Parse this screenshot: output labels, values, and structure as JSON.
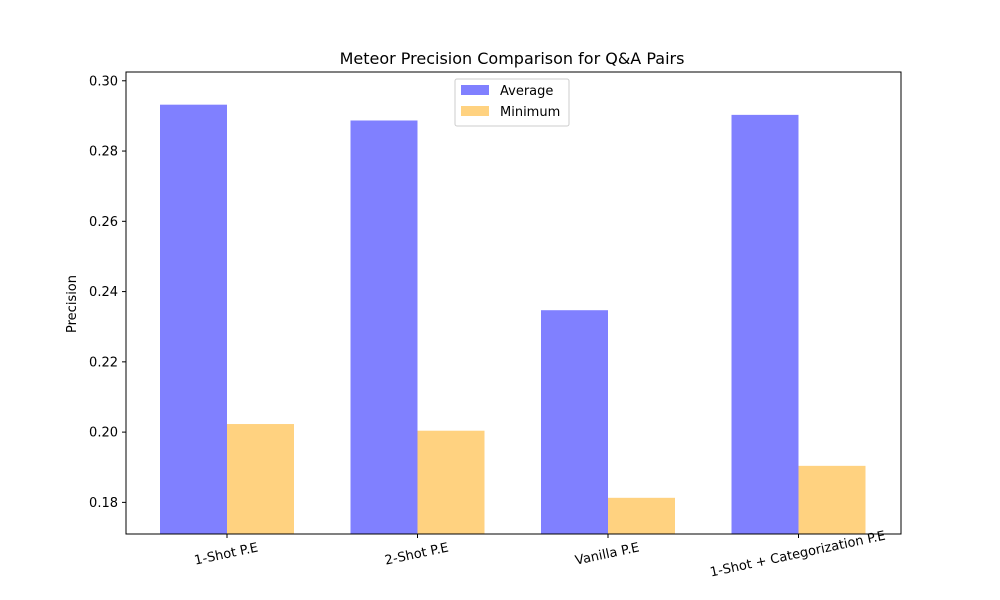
{
  "chart_data": {
    "type": "bar",
    "title": "Meteor Precision Comparison for Q&A Pairs",
    "xlabel": "",
    "ylabel": "Precision",
    "categories": [
      "1-Shot P.E",
      "2-Shot P.E",
      "Vanilla P.E",
      "1-Shot + Categorization P.E"
    ],
    "series": [
      {
        "name": "Average",
        "values": [
          0.2932,
          0.2887,
          0.2347,
          0.2903
        ],
        "color": "#8080ff"
      },
      {
        "name": "Minimum",
        "values": [
          0.2023,
          0.2004,
          0.1813,
          0.1904
        ],
        "color": "#ffd280"
      }
    ],
    "ylim": [
      0.171,
      0.3025
    ],
    "yticks": [
      0.18,
      0.2,
      0.22,
      0.24,
      0.26,
      0.28,
      0.3
    ],
    "ytick_labels": [
      "0.18",
      "0.20",
      "0.22",
      "0.24",
      "0.26",
      "0.28",
      "0.30"
    ],
    "grid": false,
    "legend_position": "top-center",
    "xtick_rotation": "rotated"
  }
}
